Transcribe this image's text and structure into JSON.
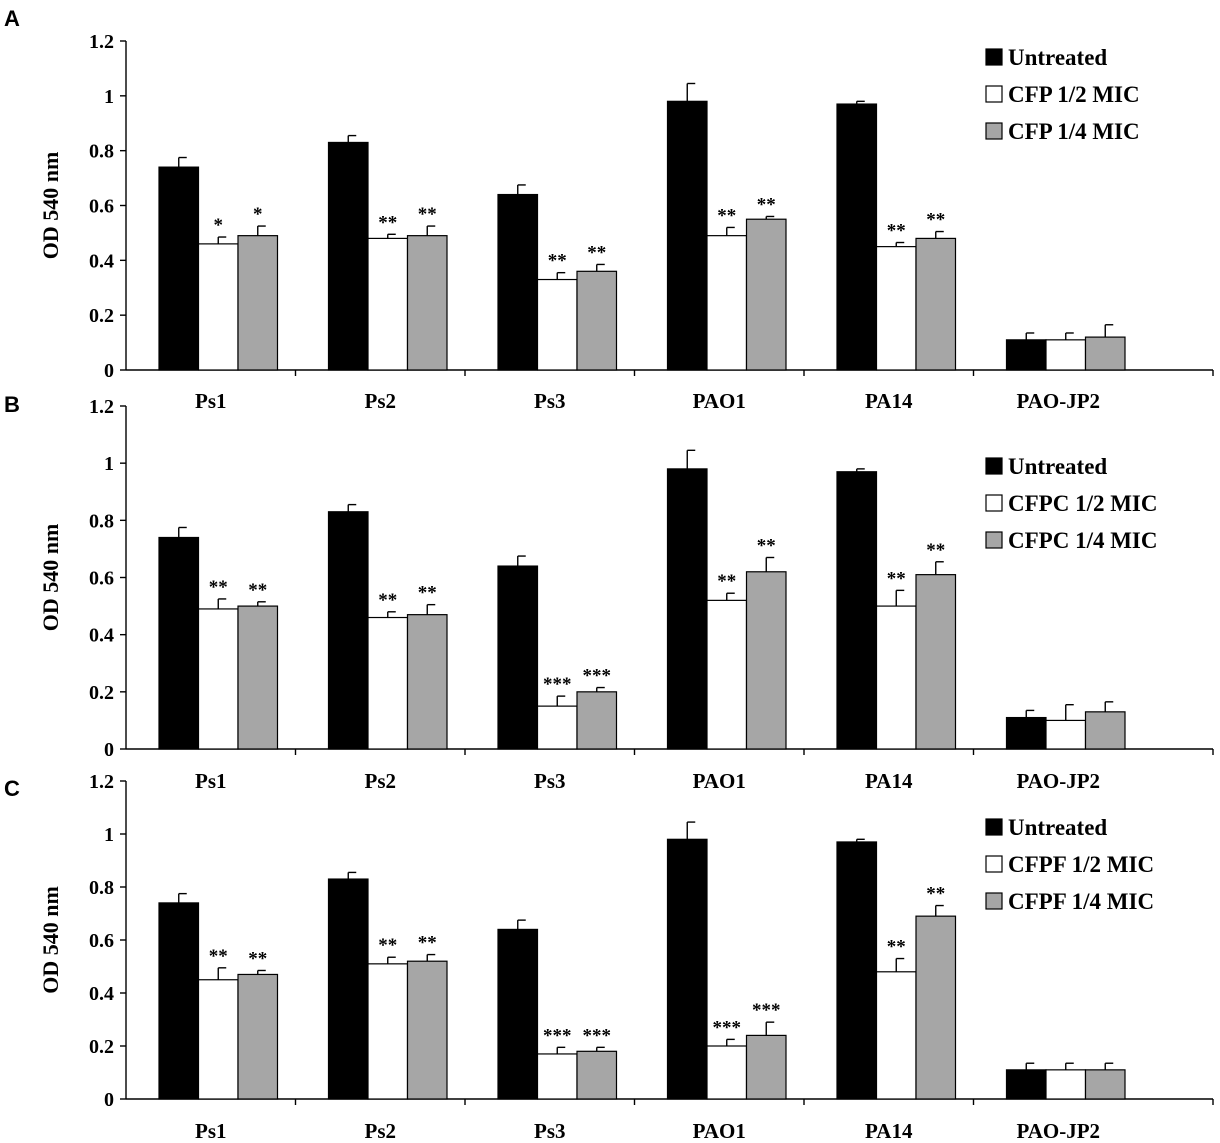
{
  "chart_data": [
    {
      "type": "bar",
      "panel_label": "A",
      "ylabel": "OD 540 nm",
      "ylim": [
        0,
        1.2
      ],
      "yticks": [
        "0",
        "0.2",
        "0.4",
        "0.6",
        "0.8",
        "1",
        "1.2"
      ],
      "categories": [
        "Ps1",
        "Ps2",
        "Ps3",
        "PAO1",
        "PA14",
        "PAO-JP2"
      ],
      "legend_position": "top-right",
      "series": [
        {
          "name": "Untreated",
          "color": "#000000",
          "values": [
            0.74,
            0.83,
            0.64,
            0.98,
            0.97,
            0.11
          ],
          "errors": [
            0.035,
            0.025,
            0.035,
            0.065,
            0.01,
            0.025
          ],
          "sig": [
            "",
            "",
            "",
            "",
            "",
            ""
          ]
        },
        {
          "name": "CFP 1/2 MIC",
          "color": "#ffffff",
          "values": [
            0.46,
            0.48,
            0.33,
            0.49,
            0.45,
            0.11
          ],
          "errors": [
            0.025,
            0.015,
            0.025,
            0.03,
            0.015,
            0.025
          ],
          "sig": [
            "*",
            "**",
            "**",
            "**",
            "**",
            ""
          ]
        },
        {
          "name": "CFP 1/4 MIC",
          "color": "#a6a6a6",
          "values": [
            0.49,
            0.49,
            0.36,
            0.55,
            0.48,
            0.12
          ],
          "errors": [
            0.035,
            0.035,
            0.025,
            0.01,
            0.025,
            0.045
          ],
          "sig": [
            "*",
            "**",
            "**",
            "**",
            "**",
            ""
          ]
        }
      ]
    },
    {
      "type": "bar",
      "panel_label": "B",
      "ylabel": "OD 540 nm",
      "ylim": [
        0,
        1.2
      ],
      "yticks": [
        "0",
        "0.2",
        "0.4",
        "0.6",
        "0.8",
        "1",
        "1.2"
      ],
      "categories": [
        "Ps1",
        "Ps2",
        "Ps3",
        "PAO1",
        "PA14",
        "PAO-JP2"
      ],
      "legend_position": "top-right",
      "series": [
        {
          "name": "Untreated",
          "color": "#000000",
          "values": [
            0.74,
            0.83,
            0.64,
            0.98,
            0.97,
            0.11
          ],
          "errors": [
            0.035,
            0.025,
            0.035,
            0.065,
            0.01,
            0.025
          ],
          "sig": [
            "",
            "",
            "",
            "",
            "",
            ""
          ]
        },
        {
          "name": "CFPC 1/2 MIC",
          "color": "#ffffff",
          "values": [
            0.49,
            0.46,
            0.15,
            0.52,
            0.5,
            0.1
          ],
          "errors": [
            0.035,
            0.02,
            0.035,
            0.025,
            0.055,
            0.055
          ],
          "sig": [
            "**",
            "**",
            "***",
            "**",
            "**",
            ""
          ]
        },
        {
          "name": "CFPC 1/4 MIC",
          "color": "#a6a6a6",
          "values": [
            0.5,
            0.47,
            0.2,
            0.62,
            0.61,
            0.13
          ],
          "errors": [
            0.015,
            0.035,
            0.015,
            0.05,
            0.045,
            0.035
          ],
          "sig": [
            "**",
            "**",
            "***",
            "**",
            "**",
            ""
          ]
        }
      ]
    },
    {
      "type": "bar",
      "panel_label": "C",
      "ylabel": "OD 540 nm",
      "ylim": [
        0,
        1.2
      ],
      "yticks": [
        "0",
        "0.2",
        "0.4",
        "0.6",
        "0.8",
        "1",
        "1.2"
      ],
      "categories": [
        "Ps1",
        "Ps2",
        "Ps3",
        "PAO1",
        "PA14",
        "PAO-JP2"
      ],
      "legend_position": "top-right",
      "series": [
        {
          "name": "Untreated",
          "color": "#000000",
          "values": [
            0.74,
            0.83,
            0.64,
            0.98,
            0.97,
            0.11
          ],
          "errors": [
            0.035,
            0.025,
            0.035,
            0.065,
            0.01,
            0.025
          ],
          "sig": [
            "",
            "",
            "",
            "",
            "",
            ""
          ]
        },
        {
          "name": "CFPF 1/2 MIC",
          "color": "#ffffff",
          "values": [
            0.45,
            0.51,
            0.17,
            0.2,
            0.48,
            0.11
          ],
          "errors": [
            0.045,
            0.025,
            0.025,
            0.025,
            0.05,
            0.025
          ],
          "sig": [
            "**",
            "**",
            "***",
            "***",
            "**",
            ""
          ]
        },
        {
          "name": "CFPF 1/4 MIC",
          "color": "#a6a6a6",
          "values": [
            0.47,
            0.52,
            0.18,
            0.24,
            0.69,
            0.11
          ],
          "errors": [
            0.015,
            0.025,
            0.015,
            0.05,
            0.04,
            0.025
          ],
          "sig": [
            "**",
            "**",
            "***",
            "***",
            "**",
            ""
          ]
        }
      ]
    }
  ]
}
